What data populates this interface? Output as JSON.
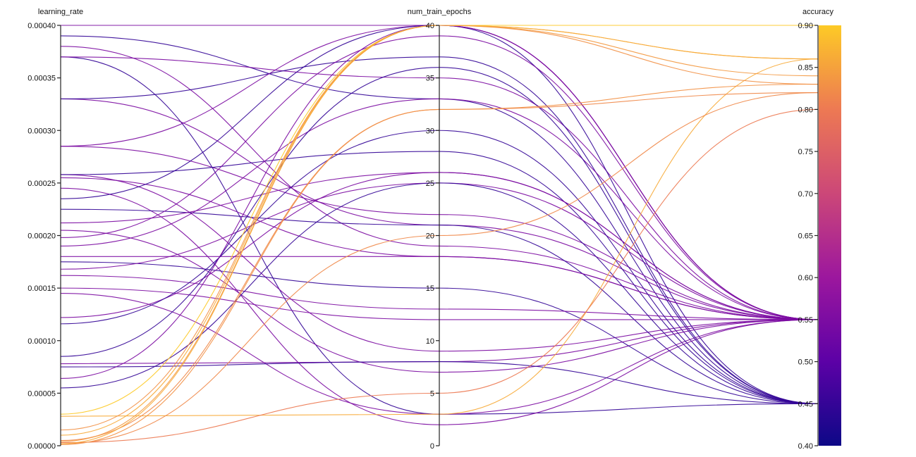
{
  "chart_data": {
    "type": "parallel_coordinates",
    "dimensions": [
      {
        "name": "learning_rate",
        "range": [
          0,
          0.0004
        ],
        "ticks": [
          "0.00000",
          "0.00005",
          "0.00010",
          "0.00015",
          "0.00020",
          "0.00025",
          "0.00030",
          "0.00035",
          "0.00040"
        ]
      },
      {
        "name": "num_train_epochs",
        "range": [
          0,
          40
        ],
        "ticks": [
          "0",
          "5",
          "10",
          "15",
          "20",
          "25",
          "30",
          "35",
          "40"
        ]
      },
      {
        "name": "accuracy",
        "range": [
          0.4,
          0.9
        ],
        "ticks": [
          "0.40",
          "0.45",
          "0.50",
          "0.55",
          "0.60",
          "0.65",
          "0.70",
          "0.75",
          "0.80",
          "0.85",
          "0.90"
        ]
      }
    ],
    "color_scale": {
      "dimension": "accuracy",
      "range": [
        0.4,
        0.9
      ],
      "stops": [
        {
          "value": 0.0,
          "color": "#0d0887"
        },
        {
          "value": 0.2,
          "color": "#5c01a6"
        },
        {
          "value": 0.4,
          "color": "#9c179e"
        },
        {
          "value": 0.6,
          "color": "#cc4778"
        },
        {
          "value": 0.8,
          "color": "#ed7953"
        },
        {
          "value": 1.0,
          "color": "#fdca26"
        }
      ]
    },
    "rows": [
      {
        "lr": 0.0004,
        "epochs": 40,
        "acc": 0.55
      },
      {
        "lr": 0.00039,
        "epochs": 33,
        "acc": 0.45
      },
      {
        "lr": 0.00038,
        "epochs": 19,
        "acc": 0.55
      },
      {
        "lr": 0.00037,
        "epochs": 3,
        "acc": 0.45
      },
      {
        "lr": 0.00037,
        "epochs": 35,
        "acc": 0.55
      },
      {
        "lr": 0.00033,
        "epochs": 21,
        "acc": 0.55
      },
      {
        "lr": 0.00033,
        "epochs": 37,
        "acc": 0.45
      },
      {
        "lr": 0.000285,
        "epochs": 22,
        "acc": 0.55
      },
      {
        "lr": 0.000285,
        "epochs": 40,
        "acc": 0.55
      },
      {
        "lr": 0.000258,
        "epochs": 9,
        "acc": 0.55
      },
      {
        "lr": 0.000258,
        "epochs": 28,
        "acc": 0.45
      },
      {
        "lr": 0.000255,
        "epochs": 18,
        "acc": 0.55
      },
      {
        "lr": 0.000245,
        "epochs": 2,
        "acc": 0.55
      },
      {
        "lr": 0.000235,
        "epochs": 40,
        "acc": 0.45
      },
      {
        "lr": 0.000225,
        "epochs": 21,
        "acc": 0.45
      },
      {
        "lr": 0.000212,
        "epochs": 26,
        "acc": 0.55
      },
      {
        "lr": 0.000205,
        "epochs": 7,
        "acc": 0.55
      },
      {
        "lr": 0.000198,
        "epochs": 39,
        "acc": 0.55
      },
      {
        "lr": 0.00019,
        "epochs": 33,
        "acc": 0.55
      },
      {
        "lr": 0.00018,
        "epochs": 18,
        "acc": 0.55
      },
      {
        "lr": 0.000175,
        "epochs": 15,
        "acc": 0.45
      },
      {
        "lr": 0.000168,
        "epochs": 25,
        "acc": 0.55
      },
      {
        "lr": 0.000162,
        "epochs": 13,
        "acc": 0.55
      },
      {
        "lr": 0.00015,
        "epochs": 12,
        "acc": 0.55
      },
      {
        "lr": 0.000145,
        "epochs": 3,
        "acc": 0.55
      },
      {
        "lr": 0.000122,
        "epochs": 26,
        "acc": 0.55
      },
      {
        "lr": 0.000116,
        "epochs": 30,
        "acc": 0.45
      },
      {
        "lr": 8.5e-05,
        "epochs": 36,
        "acc": 0.45
      },
      {
        "lr": 7.8e-05,
        "epochs": 8,
        "acc": 0.55
      },
      {
        "lr": 7.5e-05,
        "epochs": 8,
        "acc": 0.45
      },
      {
        "lr": 6.4e-05,
        "epochs": 40,
        "acc": 0.55
      },
      {
        "lr": 5.5e-05,
        "epochs": 25,
        "acc": 0.45
      },
      {
        "lr": 3e-05,
        "epochs": 40,
        "acc": 0.9
      },
      {
        "lr": 2.8e-05,
        "epochs": 3,
        "acc": 0.86
      },
      {
        "lr": 1.5e-05,
        "epochs": 40,
        "acc": 0.83
      },
      {
        "lr": 1e-05,
        "epochs": 40,
        "acc": 0.86
      },
      {
        "lr": 5e-06,
        "epochs": 32,
        "acc": 0.82
      },
      {
        "lr": 4e-06,
        "epochs": 40,
        "acc": 0.84
      },
      {
        "lr": 3e-06,
        "epochs": 5,
        "acc": 0.8
      },
      {
        "lr": 2e-06,
        "epochs": 20,
        "acc": 0.82
      },
      {
        "lr": 2e-06,
        "epochs": 40,
        "acc": 0.86
      },
      {
        "lr": 1e-06,
        "epochs": 32,
        "acc": 0.83
      }
    ]
  }
}
